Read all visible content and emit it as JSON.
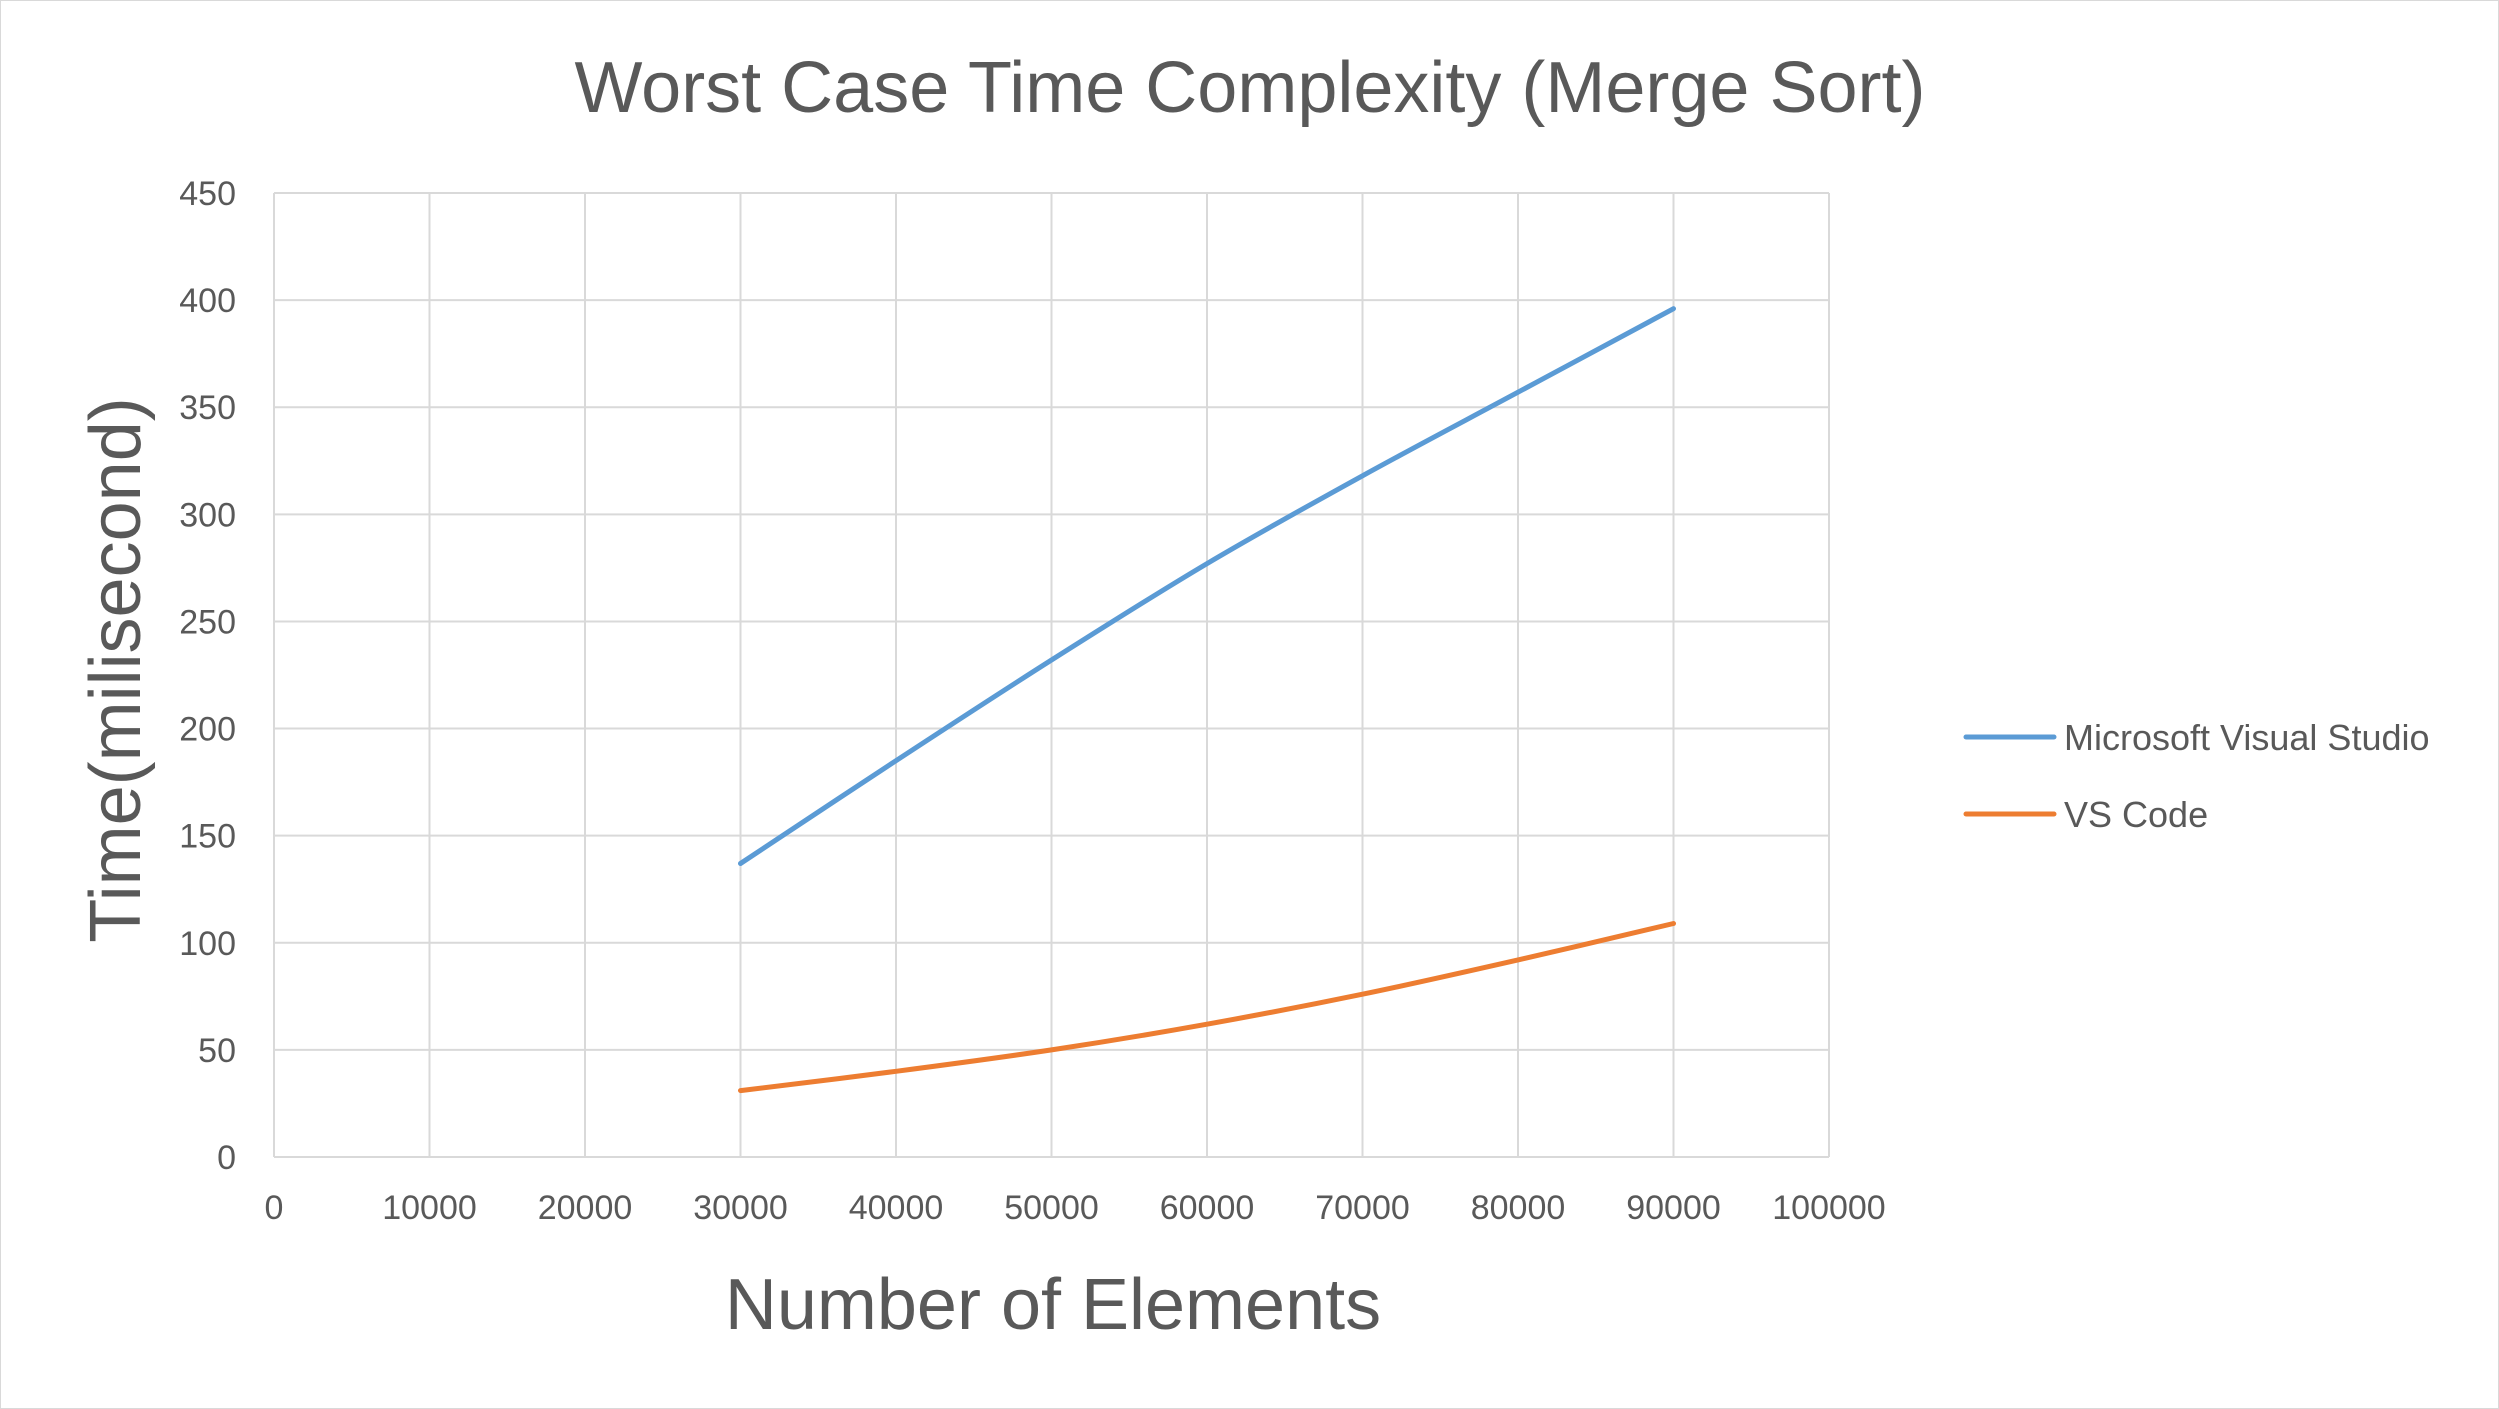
{
  "chart_data": {
    "type": "line",
    "title": "Worst Case Time Complexity (Merge Sort)",
    "xlabel": "Number of Elements",
    "ylabel": "Time(milisecond)",
    "xlim": [
      0,
      100000
    ],
    "ylim": [
      0,
      450
    ],
    "x_ticks": [
      "0",
      "10000",
      "20000",
      "30000",
      "40000",
      "50000",
      "60000",
      "70000",
      "80000",
      "90000",
      "100000"
    ],
    "y_ticks": [
      "0",
      "50",
      "100",
      "150",
      "200",
      "250",
      "300",
      "350",
      "400",
      "450"
    ],
    "grid": true,
    "legend_position": "right",
    "x": [
      30000,
      40000,
      50000,
      60000,
      70000,
      80000,
      90000
    ],
    "series": [
      {
        "name": "Microsoft Visual Studio",
        "color": "#5b9bd5",
        "values": [
          137,
          185,
          232,
          277,
          318,
          357,
          396
        ]
      },
      {
        "name": "VS Code",
        "color": "#ed7d31",
        "values": [
          31,
          40,
          50,
          62,
          76,
          92,
          109
        ]
      }
    ]
  }
}
